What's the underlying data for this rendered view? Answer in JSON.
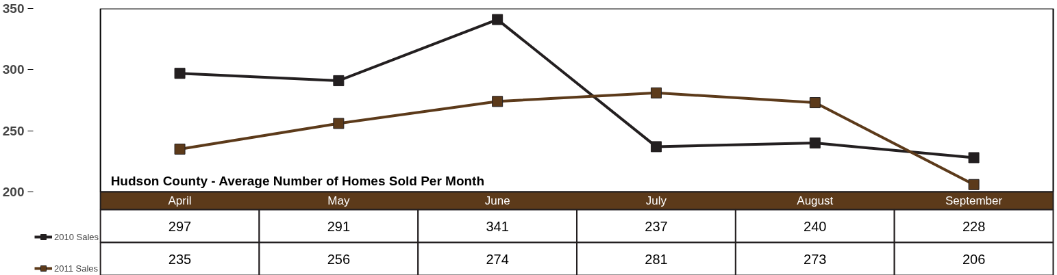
{
  "chart_data": {
    "type": "line",
    "title": "Hudson County - Average Number of Homes Sold Per Month",
    "categories": [
      "April",
      "May",
      "June",
      "July",
      "August",
      "September"
    ],
    "series": [
      {
        "name": "2010 Sales",
        "color": "#231f20",
        "values": [
          297,
          291,
          341,
          237,
          240,
          228
        ]
      },
      {
        "name": "2011 Sales",
        "color": "#5c3a1a",
        "values": [
          235,
          256,
          274,
          281,
          273,
          206
        ]
      }
    ],
    "ylim": [
      200,
      350
    ],
    "yticks": [
      200,
      250,
      300,
      350
    ],
    "grid": false,
    "marker": "square",
    "line_style": "solid",
    "data_labels": true,
    "legend": "bottom left"
  }
}
